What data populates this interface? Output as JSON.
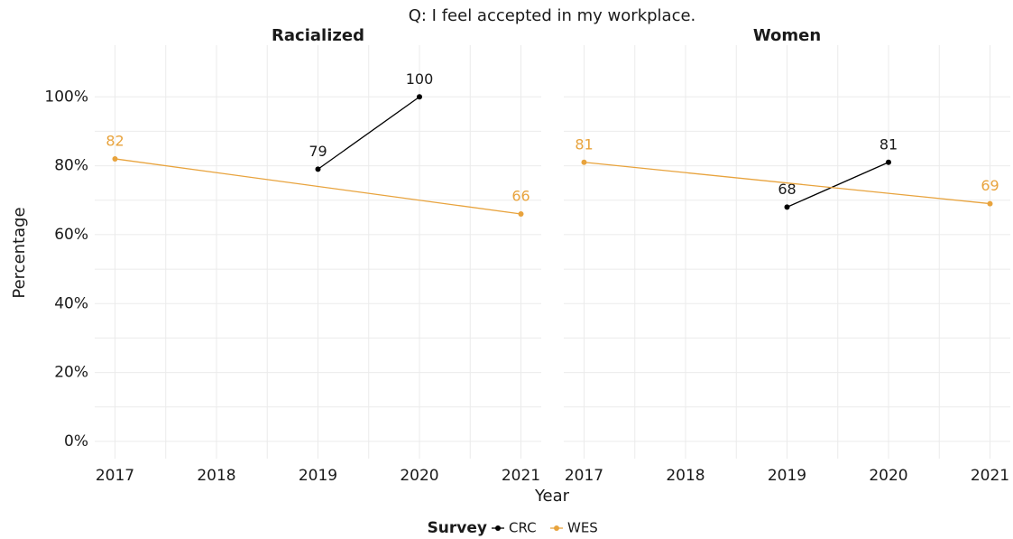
{
  "title": "Q: I feel accepted in my workplace.",
  "x_label": "Year",
  "y_label": "Percentage",
  "legend_title": "Survey",
  "chart_data": [
    {
      "type": "line",
      "title": "Racialized",
      "xlim": [
        2016.8,
        2021.2
      ],
      "xticks": [
        2017,
        2018,
        2019,
        2020,
        2021
      ],
      "ylim": [
        -5,
        115
      ],
      "yticks": [
        {
          "value": 0,
          "label": "0%"
        },
        {
          "value": 20,
          "label": "20%"
        },
        {
          "value": 40,
          "label": "40%"
        },
        {
          "value": 60,
          "label": "60%"
        },
        {
          "value": 80,
          "label": "80%"
        },
        {
          "value": 100,
          "label": "100%"
        }
      ],
      "grid": true,
      "series": [
        {
          "name": "CRC",
          "color": "#000000",
          "x": [
            2019,
            2020
          ],
          "values": [
            79,
            100
          ]
        },
        {
          "name": "WES",
          "color": "#e8a33d",
          "x": [
            2017,
            2021
          ],
          "values": [
            82,
            66
          ]
        }
      ]
    },
    {
      "type": "line",
      "title": "Women",
      "xlim": [
        2016.8,
        2021.2
      ],
      "xticks": [
        2017,
        2018,
        2019,
        2020,
        2021
      ],
      "ylim": [
        -5,
        115
      ],
      "yticks": [
        0,
        20,
        40,
        60,
        80,
        100
      ],
      "grid": true,
      "series": [
        {
          "color": "#000000",
          "x": [
            2019,
            2020
          ],
          "values": [
            68,
            81
          ]
        },
        {
          "color": "#e8a33d",
          "x": [
            2017,
            2021
          ],
          "values": [
            81,
            69
          ]
        }
      ]
    }
  ]
}
